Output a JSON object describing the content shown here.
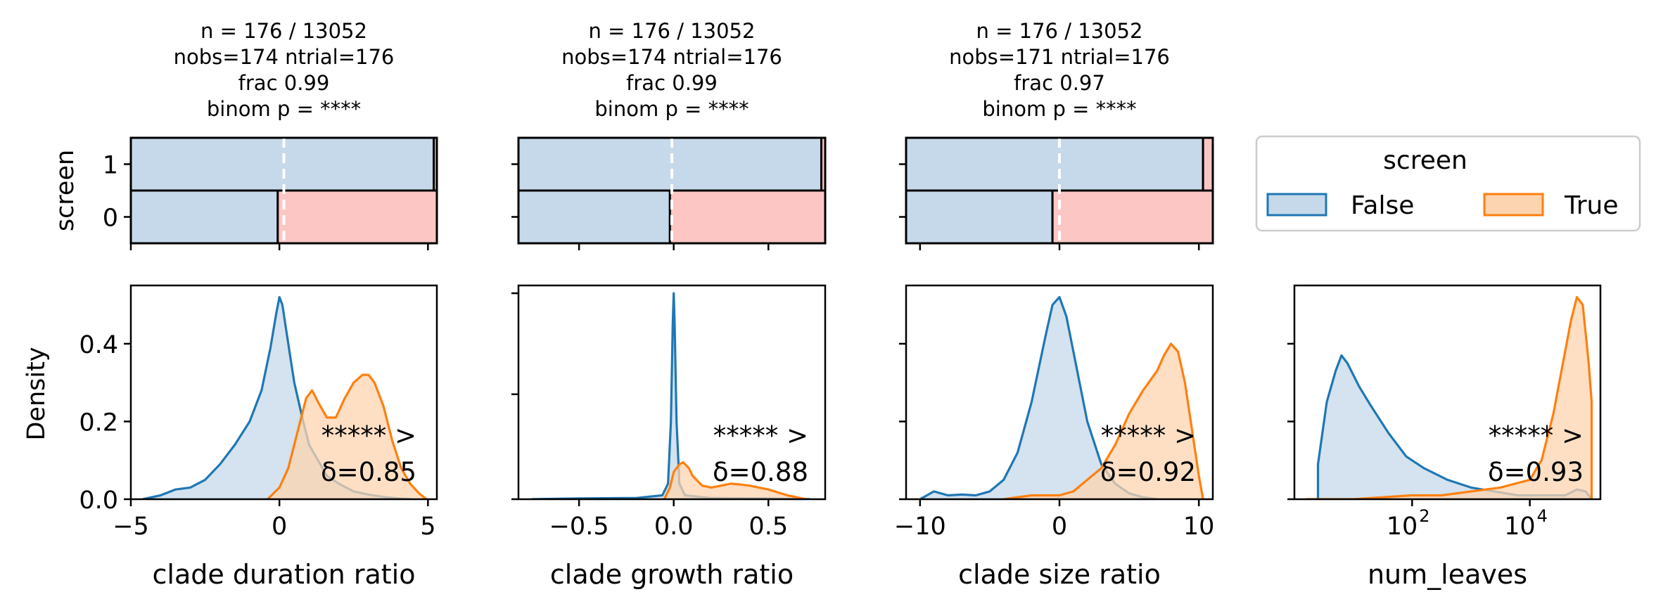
{
  "legend": {
    "title": "screen",
    "entries": [
      {
        "label": "False",
        "color": "#1f77b4"
      },
      {
        "label": "True",
        "color": "#ff7f0e"
      }
    ],
    "placement": "right of top row"
  },
  "colors": {
    "false_line": "#1f77b4",
    "false_fill": "#c6d9ea",
    "true_line": "#ff7f0e",
    "true_fill": "#fdd4b0",
    "bar_false": "#c6d9ea",
    "bar_true": "#fcc6c4",
    "annotation": "#1f77b4",
    "split_line": "#ffffff"
  },
  "chart_data": [
    {
      "type": "bar",
      "title": [
        "n = 176 / 13052",
        "nobs=174 ntrial=176",
        "frac 0.99",
        "binom p = ****"
      ],
      "ylabel": "screen",
      "categories": [
        "1",
        "0"
      ],
      "xlim": [
        -5,
        5
      ],
      "split_at": 0,
      "stacks": [
        {
          "category": "1",
          "false_end": 4.9,
          "true_end": 5.0
        },
        {
          "category": "0",
          "false_end": -0.2,
          "true_end": 5.0
        }
      ]
    },
    {
      "type": "bar",
      "title": [
        "n = 176 / 13052",
        "nobs=174 ntrial=176",
        "frac 0.99",
        "binom p = ****"
      ],
      "ylabel": "",
      "categories": [
        "1",
        "0"
      ],
      "xlim": [
        -0.8,
        0.8
      ],
      "split_at": 0,
      "stacks": [
        {
          "category": "1",
          "false_end": 0.78,
          "true_end": 0.8
        },
        {
          "category": "0",
          "false_end": -0.01,
          "true_end": 0.8
        }
      ]
    },
    {
      "type": "bar",
      "title": [
        "n = 176 / 13052",
        "nobs=171 ntrial=176",
        "frac 0.97",
        "binom p = ****"
      ],
      "ylabel": "",
      "categories": [
        "1",
        "0"
      ],
      "xlim": [
        -11,
        11
      ],
      "split_at": 0,
      "stacks": [
        {
          "category": "1",
          "false_end": 10.3,
          "true_end": 11.0
        },
        {
          "category": "0",
          "false_end": -0.5,
          "true_end": 11.0
        }
      ]
    },
    {
      "type": "area",
      "xlabel": "clade duration ratio",
      "ylabel": "Density",
      "xlim": [
        -5,
        5.3
      ],
      "ylim": [
        0,
        0.55
      ],
      "xticks": [
        -5,
        0,
        5
      ],
      "xtick_labels": [
        "−5",
        "0",
        "5"
      ],
      "yticks": [
        0.0,
        0.2,
        0.4
      ],
      "ytick_labels": [
        "0.0",
        "0.2",
        "0.4"
      ],
      "annotation": [
        "***** >",
        "δ=0.85"
      ],
      "series": [
        {
          "name": "False",
          "x": [
            -4.6,
            -4.0,
            -3.5,
            -3.0,
            -2.5,
            -2.0,
            -1.5,
            -1.0,
            -0.6,
            -0.3,
            -0.1,
            0.0,
            0.1,
            0.3,
            0.5,
            0.8,
            1.0,
            1.3,
            1.6,
            2.0,
            2.5,
            3.0,
            3.5,
            4.0,
            4.4
          ],
          "y": [
            0.0,
            0.01,
            0.025,
            0.03,
            0.05,
            0.09,
            0.14,
            0.2,
            0.28,
            0.39,
            0.48,
            0.52,
            0.5,
            0.4,
            0.3,
            0.2,
            0.14,
            0.1,
            0.06,
            0.04,
            0.02,
            0.012,
            0.006,
            0.002,
            0.0
          ]
        },
        {
          "name": "True",
          "x": [
            -0.4,
            0.0,
            0.3,
            0.6,
            0.9,
            1.1,
            1.3,
            1.6,
            1.9,
            2.2,
            2.5,
            2.8,
            3.0,
            3.2,
            3.5,
            3.8,
            4.1,
            4.4,
            4.7,
            4.95
          ],
          "y": [
            0.0,
            0.03,
            0.08,
            0.17,
            0.26,
            0.28,
            0.25,
            0.21,
            0.21,
            0.26,
            0.3,
            0.32,
            0.32,
            0.3,
            0.24,
            0.15,
            0.08,
            0.04,
            0.015,
            0.0
          ]
        }
      ]
    },
    {
      "type": "area",
      "xlabel": "clade growth ratio",
      "ylabel": "",
      "xlim": [
        -0.82,
        0.8
      ],
      "ylim": [
        0,
        0.55
      ],
      "xticks": [
        -0.5,
        0.0,
        0.5
      ],
      "xtick_labels": [
        "−0.5",
        "0.0",
        "0.5"
      ],
      "yticks": [
        0.0,
        0.27,
        0.53
      ],
      "ytick_labels": [
        "",
        "",
        ""
      ],
      "annotation": [
        "***** >",
        "δ=0.88"
      ],
      "series": [
        {
          "name": "False",
          "x": [
            -0.75,
            -0.5,
            -0.2,
            -0.06,
            -0.03,
            -0.015,
            -0.005,
            0.0,
            0.005,
            0.015,
            0.03,
            0.06,
            0.2,
            0.5,
            0.72
          ],
          "y": [
            0.0,
            0.002,
            0.003,
            0.01,
            0.04,
            0.2,
            0.45,
            0.53,
            0.45,
            0.2,
            0.04,
            0.01,
            0.003,
            0.002,
            0.0
          ]
        },
        {
          "name": "True",
          "x": [
            -0.05,
            -0.02,
            0.0,
            0.03,
            0.05,
            0.08,
            0.1,
            0.15,
            0.2,
            0.25,
            0.3,
            0.35,
            0.4,
            0.5,
            0.6,
            0.7
          ],
          "y": [
            0.0,
            0.03,
            0.07,
            0.09,
            0.095,
            0.08,
            0.06,
            0.035,
            0.03,
            0.035,
            0.04,
            0.038,
            0.035,
            0.025,
            0.01,
            0.0
          ]
        }
      ]
    },
    {
      "type": "area",
      "xlabel": "clade size ratio",
      "ylabel": "",
      "xlim": [
        -11,
        11
      ],
      "ylim": [
        0,
        0.55
      ],
      "xticks": [
        -10,
        0,
        10
      ],
      "xtick_labels": [
        "−10",
        "0",
        "10"
      ],
      "yticks": [
        0.0,
        0.2,
        0.4
      ],
      "ytick_labels": [
        "",
        "",
        ""
      ],
      "annotation": [
        "***** >",
        "δ=0.92"
      ],
      "series": [
        {
          "name": "False",
          "x": [
            -10.0,
            -9.0,
            -8.0,
            -7.0,
            -6.0,
            -5.0,
            -4.0,
            -3.0,
            -2.0,
            -1.0,
            -0.5,
            0.0,
            0.5,
            1.0,
            2.0,
            3.0,
            4.0,
            5.0,
            6.0,
            7.0
          ],
          "y": [
            0.0,
            0.02,
            0.01,
            0.012,
            0.01,
            0.02,
            0.05,
            0.12,
            0.25,
            0.42,
            0.5,
            0.52,
            0.47,
            0.38,
            0.2,
            0.09,
            0.04,
            0.015,
            0.005,
            0.0
          ]
        },
        {
          "name": "True",
          "x": [
            -4.0,
            -2.0,
            0.0,
            1.0,
            2.0,
            3.0,
            4.0,
            5.0,
            6.0,
            7.0,
            7.5,
            8.0,
            8.5,
            9.0,
            9.5,
            10.0,
            10.3
          ],
          "y": [
            0.0,
            0.01,
            0.01,
            0.02,
            0.05,
            0.08,
            0.14,
            0.22,
            0.28,
            0.33,
            0.37,
            0.4,
            0.38,
            0.3,
            0.18,
            0.06,
            0.0
          ]
        }
      ]
    },
    {
      "type": "area",
      "xlabel": "num_leaves",
      "ylabel": "",
      "xscale": "log",
      "xlim_log10": [
        0.0,
        5.2
      ],
      "ylim": [
        0,
        0.55
      ],
      "xticks_log10": [
        2,
        4
      ],
      "xtick_labels": [
        "10",
        "10"
      ],
      "xtick_exponents": [
        "2",
        "4"
      ],
      "yticks": [
        0.0,
        0.2,
        0.4
      ],
      "ytick_labels": [
        "",
        "",
        ""
      ],
      "annotation": [
        "***** >",
        "δ=0.93"
      ],
      "series": [
        {
          "name": "False",
          "x_log10": [
            0.4,
            0.4,
            0.55,
            0.7,
            0.8,
            0.9,
            1.1,
            1.3,
            1.6,
            1.9,
            2.2,
            2.6,
            3.0,
            3.4,
            3.8,
            4.2,
            4.6,
            4.8,
            4.95,
            5.05
          ],
          "y": [
            0.0,
            0.09,
            0.25,
            0.33,
            0.37,
            0.35,
            0.29,
            0.24,
            0.17,
            0.11,
            0.08,
            0.05,
            0.03,
            0.02,
            0.01,
            0.01,
            0.01,
            0.025,
            0.02,
            0.0
          ]
        },
        {
          "name": "True",
          "x_log10": [
            0.2,
            1.0,
            2.0,
            2.5,
            3.0,
            3.5,
            4.0,
            4.2,
            4.4,
            4.6,
            4.7,
            4.8,
            4.9,
            5.0,
            5.05,
            5.05
          ],
          "y": [
            0.0,
            0.0,
            0.01,
            0.01,
            0.02,
            0.03,
            0.05,
            0.1,
            0.22,
            0.38,
            0.46,
            0.52,
            0.5,
            0.35,
            0.25,
            0.0
          ]
        }
      ]
    }
  ]
}
